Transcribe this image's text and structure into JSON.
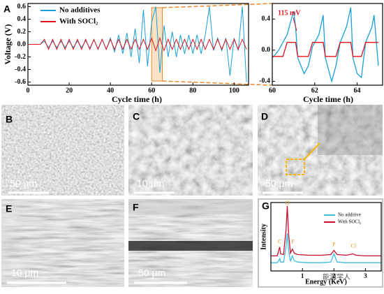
{
  "panels": [
    {
      "letter": "A"
    },
    {
      "letter": "B",
      "scale": "50 µm"
    },
    {
      "letter": "C",
      "scale": "10 µm"
    },
    {
      "letter": "D",
      "scale": "50 µm"
    },
    {
      "letter": "E",
      "scale": "10 µm"
    },
    {
      "letter": "F",
      "scale": "50 µm"
    },
    {
      "letter": "G"
    }
  ],
  "watermark": "能源学人",
  "chart_data": [
    {
      "type": "line",
      "x_label": "Cycle time (h)",
      "y_label": "Voltage (V)",
      "xlim": [
        0,
        107
      ],
      "ylim": [
        -0.65,
        0.65
      ],
      "xticks": [
        0,
        20,
        40,
        60,
        80,
        100
      ],
      "yticks": [
        -0.6,
        -0.4,
        -0.2,
        {
          "value": 0,
          "label": "0.0"
        },
        0.2,
        0.4,
        0.6
      ],
      "legend": "upper-left",
      "x": [
        0,
        6,
        8,
        10,
        12,
        14,
        16,
        18,
        20,
        22,
        24,
        26,
        28,
        30,
        32,
        34,
        36,
        38,
        40,
        42,
        44,
        46,
        48,
        50,
        52,
        54,
        56,
        58,
        60,
        62,
        64,
        66,
        68,
        70,
        72,
        74,
        76,
        78,
        80,
        82,
        84,
        86,
        88,
        90,
        92,
        94,
        96,
        98,
        100,
        102,
        104,
        106
      ],
      "series": [
        {
          "name": "No additives",
          "color": "#1a9fd8",
          "values": [
            0,
            0,
            0.05,
            -0.05,
            0.05,
            -0.05,
            0.05,
            -0.05,
            0.05,
            -0.05,
            0.05,
            -0.05,
            0.06,
            -0.06,
            0.07,
            -0.07,
            0.08,
            -0.08,
            0.1,
            -0.12,
            0.15,
            -0.15,
            0.18,
            -0.2,
            0.25,
            -0.3,
            0.55,
            -0.35,
            0.35,
            0.6,
            -0.45,
            0.3,
            -0.2,
            0.2,
            -0.2,
            0.15,
            -0.15,
            0.15,
            -0.15,
            0.15,
            -0.15,
            0.15,
            0.6,
            -0.1,
            0.1,
            -0.1,
            0.1,
            -0.5,
            0.1,
            -0.1,
            0.6,
            -0.6
          ]
        },
        {
          "name": "With SOCl₂",
          "color": "#e0141e",
          "values": [
            0,
            0,
            0.08,
            -0.08,
            0.08,
            -0.08,
            0.08,
            -0.08,
            0.08,
            -0.08,
            0.08,
            -0.08,
            0.08,
            -0.08,
            0.08,
            -0.08,
            0.08,
            -0.08,
            0.08,
            -0.08,
            0.08,
            -0.08,
            0.08,
            -0.08,
            0.08,
            -0.08,
            0.08,
            -0.08,
            0.1,
            -0.1,
            0.1,
            -0.1,
            0.08,
            -0.08,
            0.08,
            -0.08,
            0.08,
            -0.08,
            0.08,
            -0.08,
            0.08,
            -0.08,
            0.08,
            -0.08,
            0.08,
            -0.08,
            0.08,
            -0.08,
            0.08,
            -0.08,
            0.08,
            -0.08
          ]
        }
      ]
    },
    {
      "type": "line",
      "x_label": "Cycle time (h)",
      "xlim": [
        60,
        65.2
      ],
      "ylim": [
        -0.45,
        0.6
      ],
      "xticks": [
        60,
        62,
        64
      ],
      "yticks": [
        -0.4,
        {
          "value": 0,
          "label": "0.0"
        },
        0.4
      ],
      "annotation": "115 mV",
      "x": [
        60,
        60.3,
        60.5,
        60.7,
        61.0,
        61.1,
        61.2,
        61.5,
        61.7,
        61.9,
        62.2,
        62.4,
        62.5,
        62.8,
        63.0,
        63.2,
        63.5,
        63.7,
        63.8,
        64.0,
        64.2,
        64.4,
        64.7,
        64.8,
        65.0
      ],
      "series": [
        {
          "name": "No additives",
          "color": "#1a9fd8",
          "values": [
            -0.1,
            0.0,
            0.1,
            0.2,
            0.5,
            0.3,
            -0.1,
            -0.3,
            -0.2,
            0.05,
            0.2,
            0.45,
            -0.1,
            -0.4,
            -0.2,
            0.1,
            0.3,
            0.55,
            -0.1,
            -0.3,
            -0.35,
            0.1,
            0.3,
            0.45,
            -0.2
          ]
        },
        {
          "name": "With SOCl₂",
          "color": "#e0141e",
          "values": [
            -0.08,
            -0.08,
            -0.08,
            0.1,
            0.1,
            0.1,
            -0.08,
            -0.08,
            -0.08,
            0.1,
            0.1,
            0.1,
            -0.08,
            -0.08,
            -0.08,
            0.1,
            0.1,
            0.1,
            -0.08,
            -0.08,
            -0.08,
            0.1,
            0.1,
            0.1,
            0.1
          ]
        }
      ]
    },
    {
      "type": "line",
      "x_label": "Energy (KeV)",
      "y_label": "Intensity",
      "xlim": [
        0,
        3.5
      ],
      "ylim": [
        0,
        1
      ],
      "xticks": [
        1,
        2,
        3
      ],
      "legend": "upper-right",
      "peaks": [
        "C",
        "O",
        "F",
        "P",
        "Cl"
      ],
      "x": [
        0,
        0.2,
        0.25,
        0.28,
        0.31,
        0.4,
        0.48,
        0.52,
        0.56,
        0.62,
        0.68,
        0.74,
        0.85,
        1.2,
        1.6,
        1.9,
        2.0,
        2.1,
        2.4,
        2.6,
        2.7,
        3.0,
        3.5
      ],
      "series": [
        {
          "name": "No additive",
          "color": "#3bbde0",
          "values": [
            0.12,
            0.12,
            0.15,
            0.18,
            0.13,
            0.13,
            0.35,
            0.55,
            0.3,
            0.14,
            0.22,
            0.15,
            0.13,
            0.12,
            0.12,
            0.13,
            0.25,
            0.13,
            0.12,
            0.12,
            0.12,
            0.12,
            0.12
          ]
        },
        {
          "name": "With SOCl₂",
          "color": "#c8102e",
          "values": [
            0.22,
            0.22,
            0.3,
            0.35,
            0.25,
            0.24,
            0.6,
            0.95,
            0.55,
            0.26,
            0.32,
            0.26,
            0.24,
            0.23,
            0.23,
            0.24,
            0.3,
            0.24,
            0.23,
            0.25,
            0.23,
            0.22,
            0.22
          ]
        }
      ]
    }
  ]
}
